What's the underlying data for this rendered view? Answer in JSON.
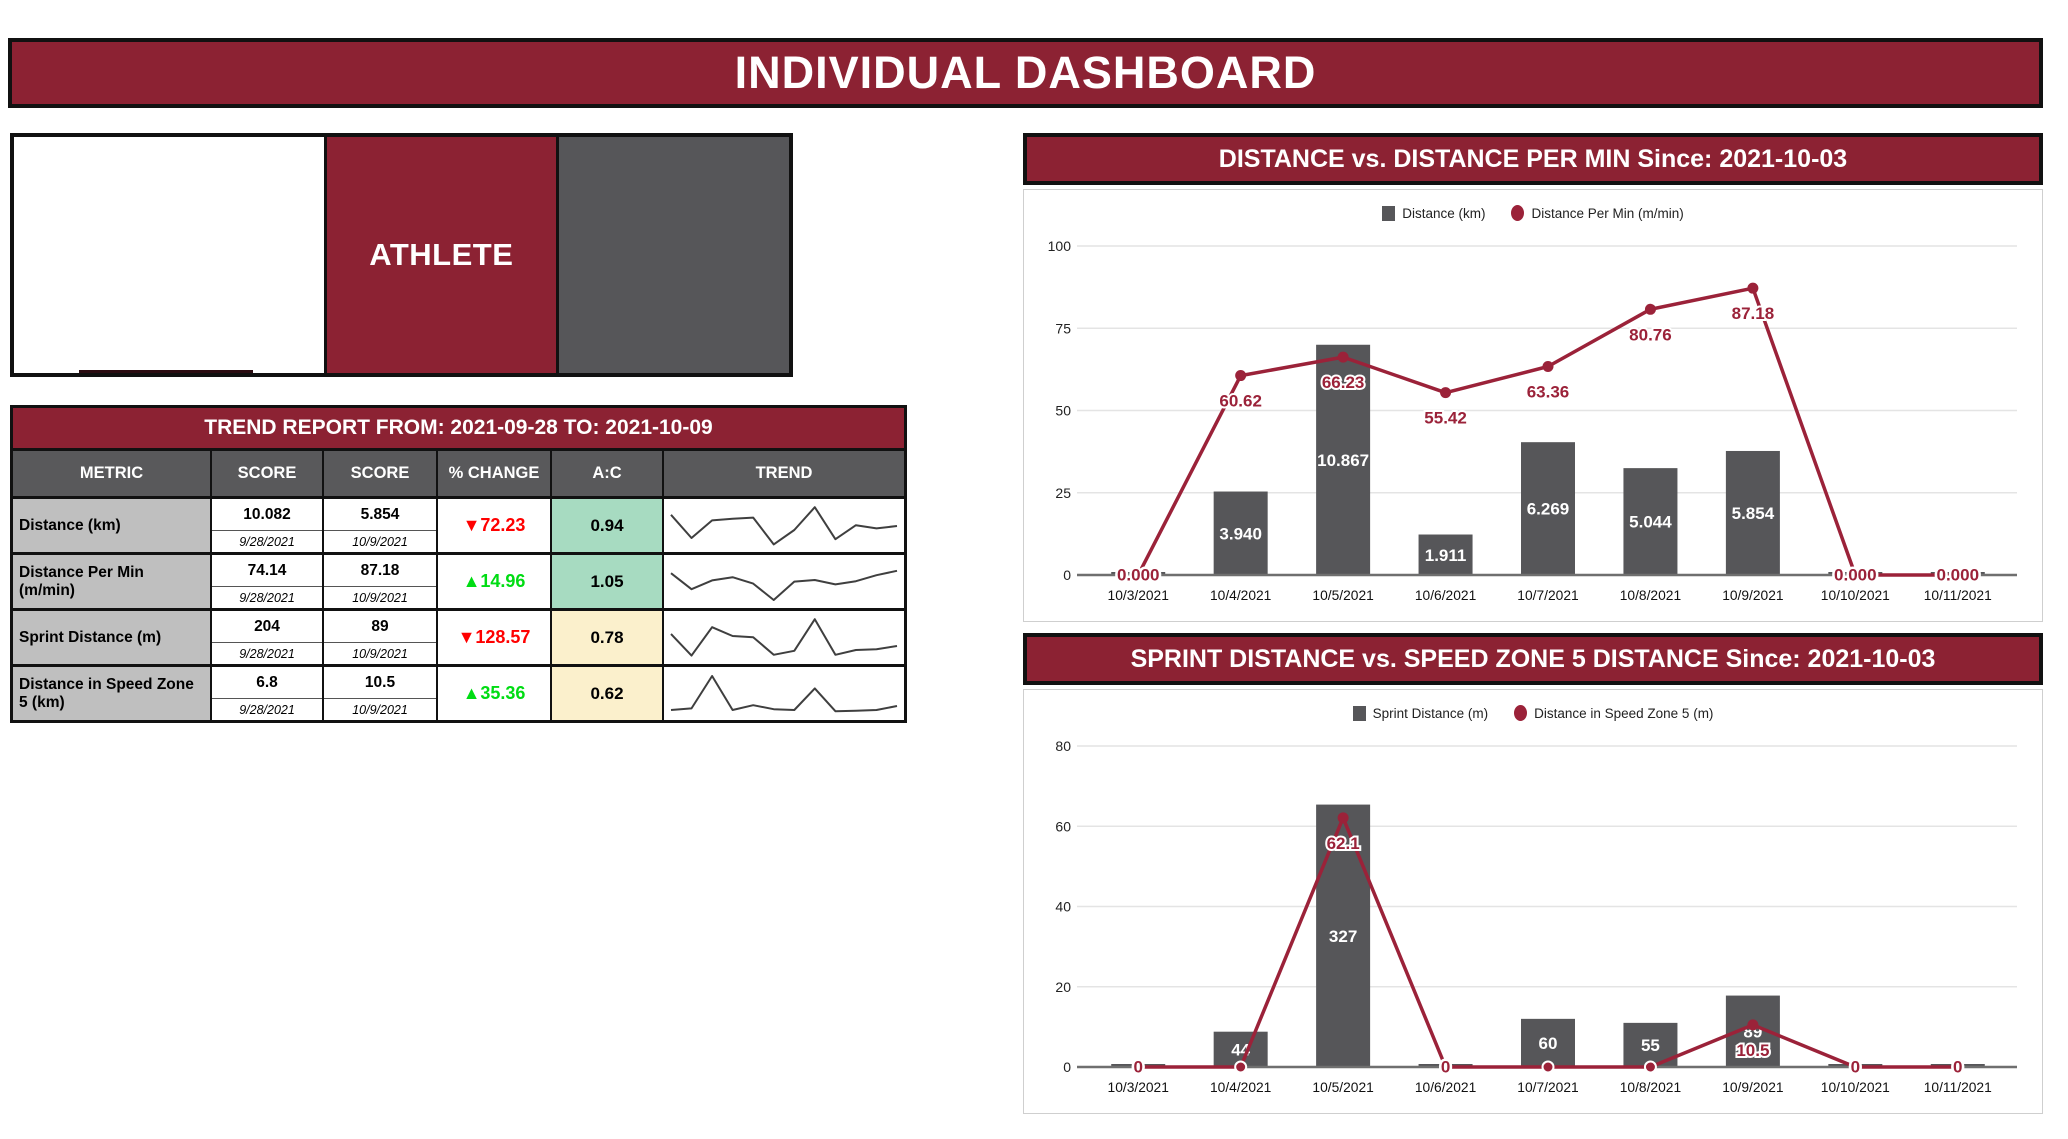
{
  "page_title": "INDIVIDUAL DASHBOARD",
  "athlete_card": {
    "label": "ATHLETE"
  },
  "colors": {
    "banner_maroon": "#8C2233",
    "line_maroon": "#9B2239",
    "bar_gray": "#565659",
    "header_gray": "#59595B",
    "metric_gray": "#BFBFBF",
    "green_cell": "#A7DBC1",
    "cream_cell": "#FBF0CC",
    "neg_red": "#FF0000",
    "pos_green": "#00DC13",
    "spark_line": "#3F3F3F",
    "axis_line": "#6F6F6F",
    "gridline": "#E4E4E4"
  },
  "trend_report": {
    "title": "TREND REPORT FROM: 2021-09-28 TO: 2021-10-09",
    "columns": [
      "METRIC",
      "SCORE",
      "SCORE",
      "% CHANGE",
      "A:C",
      "TREND"
    ],
    "rows": [
      {
        "metric": "Distance (km)",
        "score_a": "10.082",
        "date_a": "9/28/2021",
        "score_b": "5.854",
        "date_b": "10/9/2021",
        "direction": "down",
        "change": "72.23",
        "ac": "0.94",
        "ac_bg": "#A7DBC1",
        "spark": [
          78,
          20,
          64,
          68,
          71,
          4,
          40,
          97,
          17,
          52,
          44,
          50
        ]
      },
      {
        "metric": "Distance Per Min (m/min)",
        "score_a": "74.14",
        "date_a": "9/28/2021",
        "score_b": "87.18",
        "date_b": "10/9/2021",
        "direction": "up",
        "change": "14.96",
        "ac": "1.05",
        "ac_bg": "#A7DBC1",
        "spark": [
          72,
          32,
          54,
          62,
          46,
          5,
          51,
          55,
          44,
          52,
          67,
          78
        ]
      },
      {
        "metric": "Sprint Distance (m)",
        "score_a": "204",
        "date_a": "9/28/2021",
        "score_b": "89",
        "date_b": "10/9/2021",
        "direction": "down",
        "change": "128.57",
        "ac": "0.78",
        "ac_bg": "#FBF0CC",
        "spark": [
          60,
          6,
          77,
          55,
          52,
          8,
          18,
          97,
          8,
          20,
          22,
          30
        ]
      },
      {
        "metric": "Distance in Speed Zone 5 (km)",
        "score_a": "6.8",
        "date_a": "9/28/2021",
        "score_b": "10.5",
        "date_b": "10/9/2021",
        "direction": "up",
        "change": "35.36",
        "ac": "0.62",
        "ac_bg": "#FBF0CC",
        "spark": [
          10,
          14,
          95,
          10,
          22,
          12,
          10,
          64,
          7,
          8,
          10,
          20
        ]
      }
    ]
  },
  "chart_data": [
    {
      "type": "bar-line",
      "title": "DISTANCE vs. DISTANCE PER MIN Since: 2021-10-03",
      "categories": [
        "10/3/2021",
        "10/4/2021",
        "10/5/2021",
        "10/6/2021",
        "10/7/2021",
        "10/8/2021",
        "10/9/2021",
        "10/10/2021",
        "10/11/2021"
      ],
      "series": [
        {
          "name": "Distance (km)",
          "type": "bar",
          "values": [
            0,
            3.94,
            10.867,
            1.911,
            6.269,
            5.044,
            5.854,
            0,
            0
          ],
          "labels": [
            "",
            "3.940",
            "10.867",
            "1.911",
            "6.269",
            "5.044",
            "5.854",
            "",
            ""
          ]
        },
        {
          "name": "Distance Per Min (m/min)",
          "type": "line",
          "values": [
            0,
            60.62,
            66.23,
            55.42,
            63.36,
            80.76,
            87.18,
            0,
            0
          ],
          "labels": [
            "0.000",
            "60.62",
            "66.23",
            "55.42",
            "63.36",
            "80.76",
            "87.18",
            "0.000",
            "0.000"
          ]
        }
      ],
      "ylim": [
        0,
        100
      ],
      "yticks": [
        0,
        25,
        50,
        75,
        100
      ],
      "bar_display_scale": 6.44,
      "grid": true,
      "legend_position": "top"
    },
    {
      "type": "bar-line",
      "title": "SPRINT DISTANCE vs. SPEED ZONE 5 DISTANCE Since: 2021-10-03",
      "categories": [
        "10/3/2021",
        "10/4/2021",
        "10/5/2021",
        "10/6/2021",
        "10/7/2021",
        "10/8/2021",
        "10/9/2021",
        "10/10/2021",
        "10/11/2021"
      ],
      "series": [
        {
          "name": "Sprint Distance (m)",
          "type": "bar",
          "values": [
            0,
            44,
            327,
            0,
            60,
            55,
            89,
            0,
            0
          ],
          "labels": [
            "",
            "44",
            "327",
            "",
            "60",
            "55",
            "89",
            "",
            ""
          ]
        },
        {
          "name": "Distance in Speed Zone 5 (m)",
          "type": "line",
          "values": [
            0,
            0,
            62.1,
            0,
            0,
            0,
            10.5,
            0,
            0
          ],
          "labels": [
            "0",
            "",
            "62.1",
            "0",
            "",
            "",
            "10.5",
            "0",
            "0"
          ]
        }
      ],
      "ylim": [
        0,
        80
      ],
      "yticks": [
        0,
        20,
        40,
        60,
        80
      ],
      "bar_display_scale": 0.2,
      "grid": true,
      "legend_position": "top"
    }
  ]
}
